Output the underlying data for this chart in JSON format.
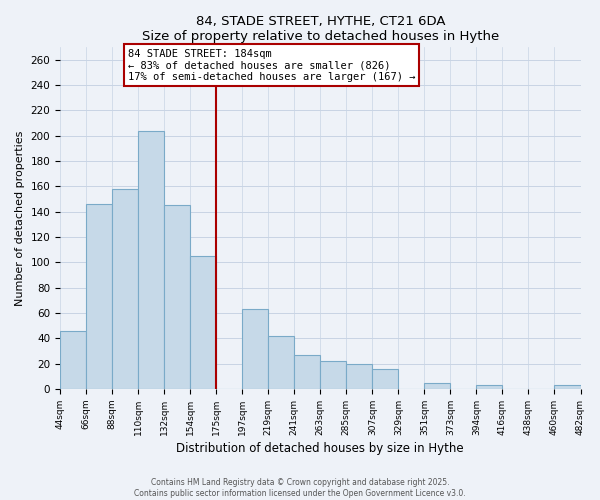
{
  "title": "84, STADE STREET, HYTHE, CT21 6DA",
  "subtitle": "Size of property relative to detached houses in Hythe",
  "xlabel": "Distribution of detached houses by size in Hythe",
  "ylabel": "Number of detached properties",
  "bar_labels": [
    "44sqm",
    "66sqm",
    "88sqm",
    "110sqm",
    "132sqm",
    "154sqm",
    "175sqm",
    "197sqm",
    "219sqm",
    "241sqm",
    "263sqm",
    "285sqm",
    "307sqm",
    "329sqm",
    "351sqm",
    "373sqm",
    "394sqm",
    "416sqm",
    "438sqm",
    "460sqm",
    "482sqm"
  ],
  "bar_values": [
    46,
    146,
    158,
    204,
    145,
    105,
    0,
    63,
    42,
    27,
    22,
    20,
    16,
    0,
    5,
    0,
    3,
    0,
    0,
    3
  ],
  "bar_color": "#c6d9e8",
  "bar_edge_color": "#7aaac8",
  "vline_position": 6,
  "vline_color": "#aa0000",
  "ylim": [
    0,
    270
  ],
  "yticks": [
    0,
    20,
    40,
    60,
    80,
    100,
    120,
    140,
    160,
    180,
    200,
    220,
    240,
    260
  ],
  "annotation_title": "84 STADE STREET: 184sqm",
  "annotation_line1": "← 83% of detached houses are smaller (826)",
  "annotation_line2": "17% of semi-detached houses are larger (167) →",
  "footer_line1": "Contains HM Land Registry data © Crown copyright and database right 2025.",
  "footer_line2": "Contains public sector information licensed under the Open Government Licence v3.0.",
  "grid_color": "#c8d4e4",
  "background_color": "#eef2f8"
}
